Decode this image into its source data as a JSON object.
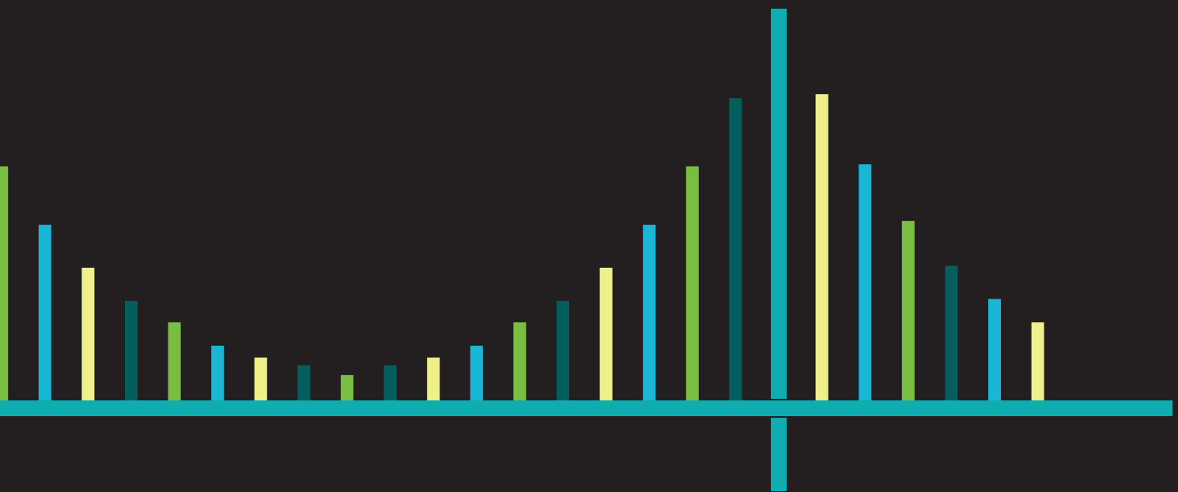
{
  "colors": {
    "background": "#231f20",
    "axis": "#0fadb0",
    "bar_yellow": "#f0f08a",
    "bar_cyan": "#1ab6d6",
    "bar_green": "#79bd43",
    "bar_teal_dark": "#045e5e"
  },
  "chart_data": {
    "type": "bar",
    "title": "",
    "xlabel": "",
    "ylabel": "",
    "grid": false,
    "legend": "none",
    "xlim": [
      -18,
      9.5
    ],
    "ylim": [
      -2.2,
      10
    ],
    "x_axis_at_y": 0,
    "y_axis_at_x": 0,
    "bars": [
      {
        "x": -18,
        "value": 6.0,
        "color_key": "bar_green"
      },
      {
        "x": -17,
        "value": 4.5,
        "color_key": "bar_cyan"
      },
      {
        "x": -16,
        "value": 3.4,
        "color_key": "bar_yellow"
      },
      {
        "x": -15,
        "value": 2.55,
        "color_key": "bar_teal_dark"
      },
      {
        "x": -14,
        "value": 2.0,
        "color_key": "bar_green"
      },
      {
        "x": -13,
        "value": 1.4,
        "color_key": "bar_cyan"
      },
      {
        "x": -12,
        "value": 1.1,
        "color_key": "bar_yellow"
      },
      {
        "x": -11,
        "value": 0.9,
        "color_key": "bar_teal_dark"
      },
      {
        "x": -10,
        "value": 0.65,
        "color_key": "bar_green"
      },
      {
        "x": -9,
        "value": 0.9,
        "color_key": "bar_teal_dark"
      },
      {
        "x": -8,
        "value": 1.1,
        "color_key": "bar_yellow"
      },
      {
        "x": -7,
        "value": 1.4,
        "color_key": "bar_cyan"
      },
      {
        "x": -6,
        "value": 2.0,
        "color_key": "bar_green"
      },
      {
        "x": -5,
        "value": 2.55,
        "color_key": "bar_teal_dark"
      },
      {
        "x": -4,
        "value": 3.4,
        "color_key": "bar_yellow"
      },
      {
        "x": -3,
        "value": 4.5,
        "color_key": "bar_cyan"
      },
      {
        "x": -2,
        "value": 6.0,
        "color_key": "bar_green"
      },
      {
        "x": -1,
        "value": 7.75,
        "color_key": "bar_teal_dark"
      },
      {
        "x": 1,
        "value": 7.85,
        "color_key": "bar_yellow"
      },
      {
        "x": 2,
        "value": 6.05,
        "color_key": "bar_cyan"
      },
      {
        "x": 3,
        "value": 4.6,
        "color_key": "bar_green"
      },
      {
        "x": 4,
        "value": 3.45,
        "color_key": "bar_teal_dark"
      },
      {
        "x": 5,
        "value": 2.6,
        "color_key": "bar_cyan"
      },
      {
        "x": 6,
        "value": 2.0,
        "color_key": "bar_yellow"
      }
    ]
  }
}
